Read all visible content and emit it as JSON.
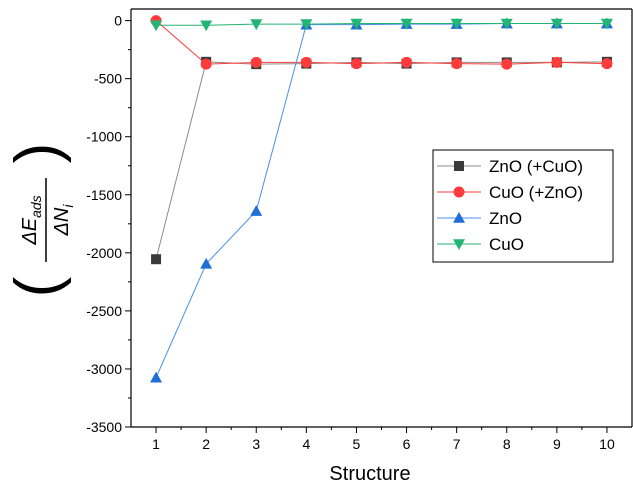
{
  "chart_data": {
    "type": "line",
    "x": [
      1,
      2,
      3,
      4,
      5,
      6,
      7,
      8,
      9,
      10
    ],
    "xlabel": "Structure",
    "ylabel": {
      "numerator": "ΔE",
      "numerator_sub": "ads",
      "denominator": "ΔN",
      "denominator_sub": "i"
    },
    "xlim": [
      0.5,
      10.5
    ],
    "ylim": [
      -3500,
      100
    ],
    "xticks": [
      1,
      2,
      3,
      4,
      5,
      6,
      7,
      8,
      9,
      10
    ],
    "yticks": [
      0,
      -500,
      -1000,
      -1500,
      -2000,
      -2500,
      -3000,
      -3500
    ],
    "grid": false,
    "legend_position": "right",
    "series": [
      {
        "name": "ZnO (+CuO)",
        "marker": "square",
        "color": "#3a3a3a",
        "line_color": "#8c8c8c",
        "values": [
          -2055,
          -355,
          -375,
          -370,
          -360,
          -370,
          -360,
          -360,
          -360,
          -355
        ]
      },
      {
        "name": "CuO (+ZnO)",
        "marker": "circle",
        "color": "#ff3b3b",
        "line_color": "#ff3b3b",
        "values": [
          0,
          -375,
          -360,
          -360,
          -370,
          -360,
          -370,
          -375,
          -360,
          -370
        ]
      },
      {
        "name": "ZnO",
        "marker": "triangle-up",
        "color": "#1f6fd6",
        "line_color": "#4a8fe8",
        "values": [
          -3075,
          -2095,
          -1640,
          -35,
          -35,
          -30,
          -30,
          -25,
          -25,
          -25
        ]
      },
      {
        "name": "CuO",
        "marker": "triangle-down",
        "color": "#22b573",
        "line_color": "#22b573",
        "values": [
          -40,
          -40,
          -30,
          -30,
          -25,
          -25,
          -25,
          -25,
          -25,
          -25
        ]
      }
    ]
  }
}
